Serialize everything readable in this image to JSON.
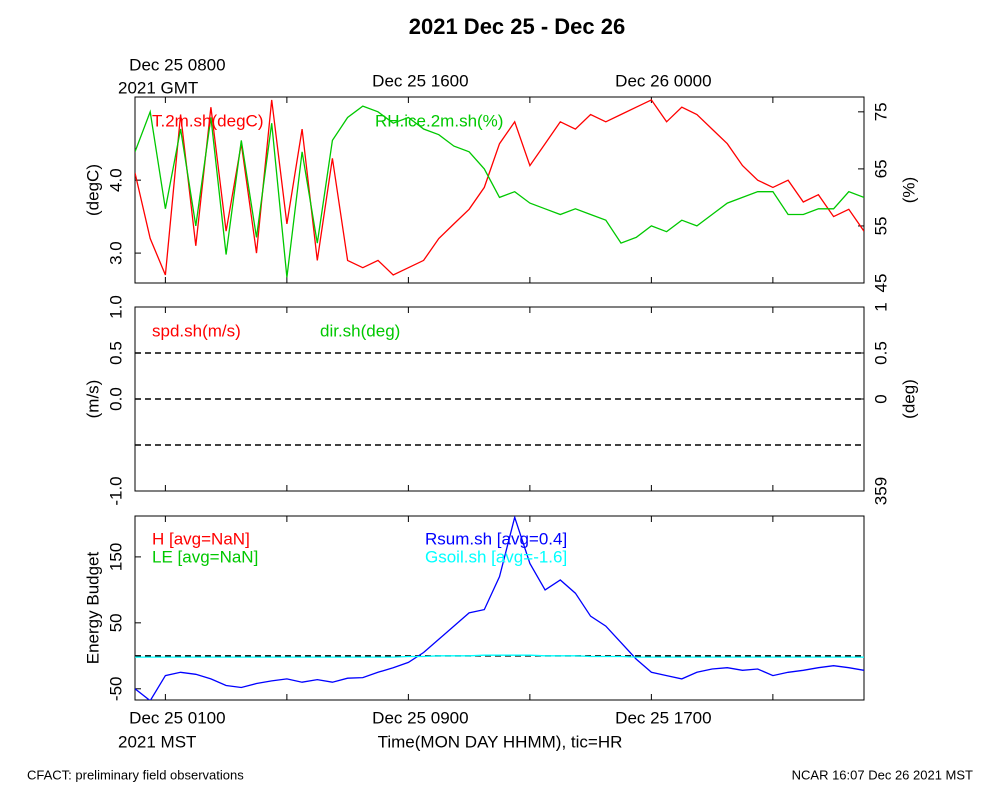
{
  "title": "2021 Dec 25 - Dec 26",
  "footer_left": "CFACT: preliminary field observations",
  "footer_right": "NCAR 16:07 Dec 26 2021 MST",
  "chart_data": [
    {
      "type": "line",
      "ylabel": "(degC)",
      "y2label": "(%)",
      "xlim": [
        0,
        24
      ],
      "x": [
        0,
        0.5,
        1,
        1.5,
        2,
        2.5,
        3,
        3.5,
        4,
        4.5,
        5,
        5.5,
        6,
        6.5,
        7,
        7.5,
        8,
        8.5,
        9,
        9.5,
        10,
        10.5,
        11,
        11.5,
        12,
        12.5,
        13,
        13.5,
        14,
        14.5,
        15,
        15.5,
        16,
        16.5,
        17,
        17.5,
        18,
        18.5,
        19,
        19.5,
        20,
        20.5,
        21,
        21.5,
        22,
        22.5,
        23,
        23.5,
        24
      ],
      "x2ticks": [
        {
          "value": 1,
          "label": "Dec 25 0800"
        },
        {
          "value": 9,
          "label": "Dec 25 1600"
        },
        {
          "value": 17,
          "label": "Dec 26 0000"
        }
      ],
      "x2_note": "2021 GMT",
      "xminor": [
        5,
        13,
        21
      ],
      "ylim": [
        2.59,
        5.14
      ],
      "yticks": [
        {
          "value": 3,
          "label": "3.0"
        },
        {
          "value": 4,
          "label": "4.0"
        }
      ],
      "y2lim": [
        45,
        77.6
      ],
      "y2ticks": [
        45,
        55,
        65,
        75
      ],
      "series": [
        {
          "name": "T.2m.sh(degC)",
          "color": "#ff0000",
          "values": [
            4.1,
            3.2,
            2.7,
            4.9,
            3.1,
            5.0,
            3.3,
            4.5,
            3.0,
            5.1,
            3.4,
            4.7,
            2.9,
            4.3,
            2.9,
            2.8,
            2.9,
            2.7,
            2.8,
            2.9,
            3.2,
            3.4,
            3.6,
            3.9,
            4.5,
            4.8,
            4.2,
            4.5,
            4.8,
            4.7,
            4.9,
            4.8,
            4.9,
            5.0,
            5.1,
            4.8,
            5.0,
            4.9,
            4.7,
            4.5,
            4.2,
            4.0,
            3.9,
            4.0,
            3.7,
            3.8,
            3.5,
            3.6,
            3.3
          ]
        },
        {
          "name": "RH.ice.2m.sh(%)",
          "color": "#00c800",
          "axis": "y2",
          "values": [
            68,
            75,
            58,
            72,
            55,
            74,
            50,
            70,
            53,
            73,
            46,
            68,
            52,
            70,
            74,
            76,
            75,
            73,
            74,
            72,
            71,
            69,
            68,
            65,
            60,
            61,
            59,
            58,
            57,
            58,
            57,
            56,
            52,
            53,
            55,
            54,
            56,
            55,
            57,
            59,
            60,
            61,
            61,
            57,
            57,
            58,
            58,
            61,
            60
          ]
        }
      ]
    },
    {
      "type": "line",
      "ylabel": "(m/s)",
      "y2label": "(deg)",
      "xlim": [
        0,
        24
      ],
      "x": [],
      "xminor": [
        1,
        5,
        9,
        13,
        17,
        21
      ],
      "ylim": [
        -1,
        1
      ],
      "yticks": [
        {
          "value": -1,
          "label": "-1.0"
        },
        {
          "value": 0,
          "label": "0.0"
        },
        0.5,
        {
          "value": 1,
          "label": "1.0"
        }
      ],
      "y2lim": [
        -1,
        1
      ],
      "y2ticks": [
        {
          "value": -1,
          "label": "359"
        },
        0,
        0.5,
        1
      ],
      "hlines": [
        -0.5,
        0,
        0.5
      ],
      "series": [
        {
          "name": "spd.sh(m/s)",
          "color": "#ff0000",
          "values": []
        },
        {
          "name": "dir.sh(deg)",
          "color": "#00c800",
          "values": []
        }
      ]
    },
    {
      "type": "line",
      "ylabel": "Energy Budget",
      "xlim": [
        0,
        24
      ],
      "x": [
        0,
        0.5,
        1,
        1.5,
        2,
        2.5,
        3,
        3.5,
        4,
        4.5,
        5,
        5.5,
        6,
        6.5,
        7,
        7.5,
        8,
        8.5,
        9,
        9.5,
        10,
        10.5,
        11,
        11.5,
        12,
        12.5,
        13,
        13.5,
        14,
        14.5,
        15,
        15.5,
        16,
        16.5,
        17,
        17.5,
        18,
        18.5,
        19,
        19.5,
        20,
        20.5,
        21,
        21.5,
        22,
        22.5,
        23,
        23.5,
        24
      ],
      "xticks": [
        {
          "value": 1,
          "label": "Dec 25 0100"
        },
        {
          "value": 9,
          "label": "Dec 25 0900"
        },
        {
          "value": 17,
          "label": "Dec 25 1700"
        }
      ],
      "x_note": "2021 MST",
      "xlabel": "Time(MON DAY HHMM), tic=HR",
      "xminor": [
        5,
        13,
        21
      ],
      "ylim": [
        -67,
        212
      ],
      "yticks": [
        -50,
        50,
        150
      ],
      "hlines": [
        0
      ],
      "series": [
        {
          "name": "H [avg=NaN]",
          "color": "#ff0000",
          "values": [
            null,
            null,
            null,
            null,
            null,
            null,
            null,
            null,
            null,
            null,
            null,
            null,
            null,
            null,
            null,
            null,
            null,
            null,
            null,
            null,
            null,
            null,
            null,
            null,
            null,
            null,
            null,
            null,
            null,
            null,
            null,
            null,
            null,
            null,
            null,
            null,
            null,
            null,
            null,
            null,
            null,
            null,
            null,
            null,
            null,
            null,
            null,
            null,
            null
          ]
        },
        {
          "name": "LE [avg=NaN]",
          "color": "#00c800",
          "values": [
            null,
            null,
            null,
            null,
            null,
            null,
            null,
            null,
            null,
            null,
            null,
            null,
            null,
            null,
            null,
            null,
            null,
            null,
            null,
            null,
            null,
            null,
            null,
            null,
            null,
            null,
            null,
            null,
            null,
            null,
            null,
            null,
            null,
            null,
            null,
            null,
            null,
            null,
            null,
            null,
            null,
            null,
            null,
            null,
            null,
            null,
            null,
            null,
            null
          ]
        },
        {
          "name": "Rsum.sh [avg=0.4]",
          "color": "#0000ff",
          "values": [
            -50,
            -68,
            -30,
            -25,
            -28,
            -35,
            -45,
            -48,
            -42,
            -38,
            -35,
            -40,
            -36,
            -40,
            -34,
            -33,
            -25,
            -18,
            -10,
            5,
            25,
            45,
            65,
            70,
            120,
            210,
            140,
            100,
            115,
            95,
            60,
            45,
            20,
            -5,
            -25,
            -30,
            -35,
            -25,
            -20,
            -18,
            -22,
            -20,
            -30,
            -25,
            -22,
            -18,
            -15,
            -18,
            -22
          ]
        },
        {
          "name": "Gsoil.sh [avg=-1.6]",
          "color": "#00ffff",
          "values": [
            -2,
            -2,
            -2,
            -2,
            -2,
            -2,
            -2,
            -2,
            -2,
            -2,
            -2,
            -2,
            -2,
            -2,
            -2,
            -2,
            -2,
            -2,
            -1,
            -1,
            0,
            0,
            0,
            1,
            1,
            1,
            1,
            0,
            0,
            0,
            -1,
            -1,
            -1,
            -2,
            -2,
            -2,
            -2,
            -2,
            -2,
            -2,
            -2,
            -2,
            -2,
            -2,
            -2,
            -2,
            -2,
            -2,
            -2
          ]
        }
      ]
    }
  ]
}
